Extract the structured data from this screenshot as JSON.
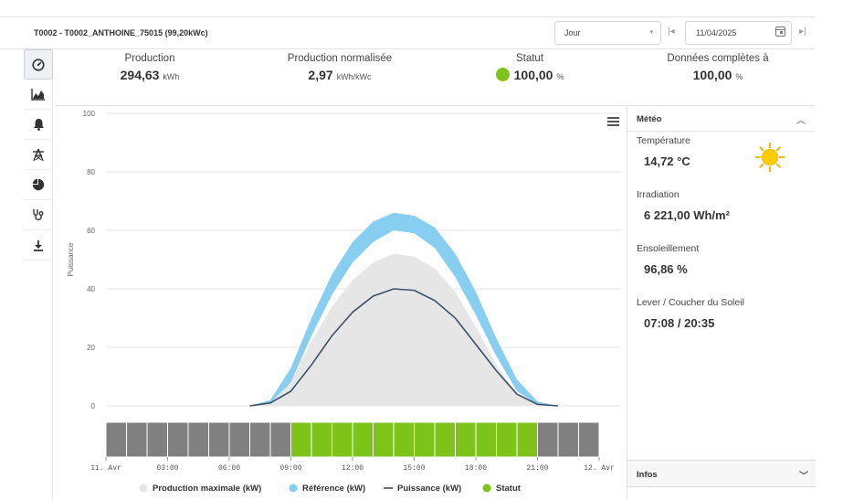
{
  "header": {
    "title": "T0002 - T0002_ANTHOINE_75015 (99,20kWc)",
    "period_select": "Jour",
    "date": "11/04/2025"
  },
  "sidebar": {
    "items": [
      "gauge-icon",
      "area-chart-icon",
      "bell-icon",
      "pylon-icon",
      "pie-chart-icon",
      "stethoscope-icon",
      "download-icon"
    ]
  },
  "stats": {
    "production": {
      "label": "Production",
      "value": "294,63",
      "unit": "kWh"
    },
    "normalized": {
      "label": "Production normalisée",
      "value": "2,97",
      "unit": "kWh/kWc"
    },
    "status": {
      "label": "Statut",
      "value": "100,00",
      "unit": "%",
      "color": "#7dc319"
    },
    "complete": {
      "label": "Données complètes à",
      "value": "100,00",
      "unit": "%"
    }
  },
  "meteo": {
    "title": "Météo",
    "temperature": {
      "label": "Température",
      "value": "14,72 °C"
    },
    "irradiation": {
      "label": "Irradiation",
      "value": "6 221,00 Wh/m²"
    },
    "sunshine": {
      "label": "Ensoleillement",
      "value": "96,86 %"
    },
    "sunrise": {
      "label": "Lever / Coucher du Soleil",
      "value": "07:08 / 20:35"
    },
    "infos_title": "Infos"
  },
  "chart_data": {
    "type": "area",
    "ylabel": "Puissance",
    "ylim": [
      0,
      100
    ],
    "yticks": [
      "0",
      "20",
      "40",
      "60",
      "80",
      "100"
    ],
    "x_ticks": [
      "11. Avr",
      "03:00",
      "06:00",
      "09:00",
      "12:00",
      "15:00",
      "18:00",
      "21:00",
      "12. Avr"
    ],
    "x_hours": [
      7,
      8,
      9,
      10,
      11,
      12,
      13,
      14,
      15,
      16,
      17,
      18,
      19,
      20,
      21,
      22
    ],
    "series": [
      {
        "name": "Production maximale (kW)",
        "color": "#e6e6e6",
        "values": [
          0,
          1,
          8,
          22,
          34,
          43,
          49,
          52,
          51,
          47,
          39,
          27,
          14,
          4,
          0.5,
          0
        ]
      },
      {
        "name": "Référence (kW)",
        "color": "#87cef0",
        "low": [
          0,
          1,
          8,
          24,
          38,
          49,
          56,
          60,
          59,
          54,
          44,
          31,
          17,
          5,
          0.5,
          0
        ],
        "high": [
          0,
          2,
          13,
          30,
          45,
          56,
          63,
          66,
          65,
          61,
          52,
          39,
          23,
          9,
          1.5,
          0
        ]
      },
      {
        "name": "Puissance (kW)",
        "color": "#3a5068",
        "values": [
          0,
          1,
          5,
          14,
          24,
          32,
          37.5,
          40,
          39.5,
          36,
          30,
          21,
          12,
          4,
          0.5,
          0
        ]
      },
      {
        "name": "Statut",
        "color": "#7dc319",
        "slot_hours": [
          0,
          1,
          2,
          3,
          4,
          5,
          6,
          7,
          8,
          9,
          10,
          11,
          12,
          13,
          14,
          15,
          16,
          17,
          18,
          19,
          20,
          21,
          22,
          23
        ],
        "slot_status": [
          "off",
          "off",
          "off",
          "off",
          "off",
          "off",
          "off",
          "off",
          "off",
          "ok",
          "ok",
          "ok",
          "ok",
          "ok",
          "ok",
          "ok",
          "ok",
          "ok",
          "ok",
          "ok",
          "ok",
          "off",
          "off",
          "off"
        ],
        "off_color": "#808080"
      }
    ],
    "legend": [
      "Production maximale (kW)",
      "Référence (kW)",
      "Puissance (kW)",
      "Statut"
    ],
    "legend_placement": "bottom",
    "grid": true
  }
}
